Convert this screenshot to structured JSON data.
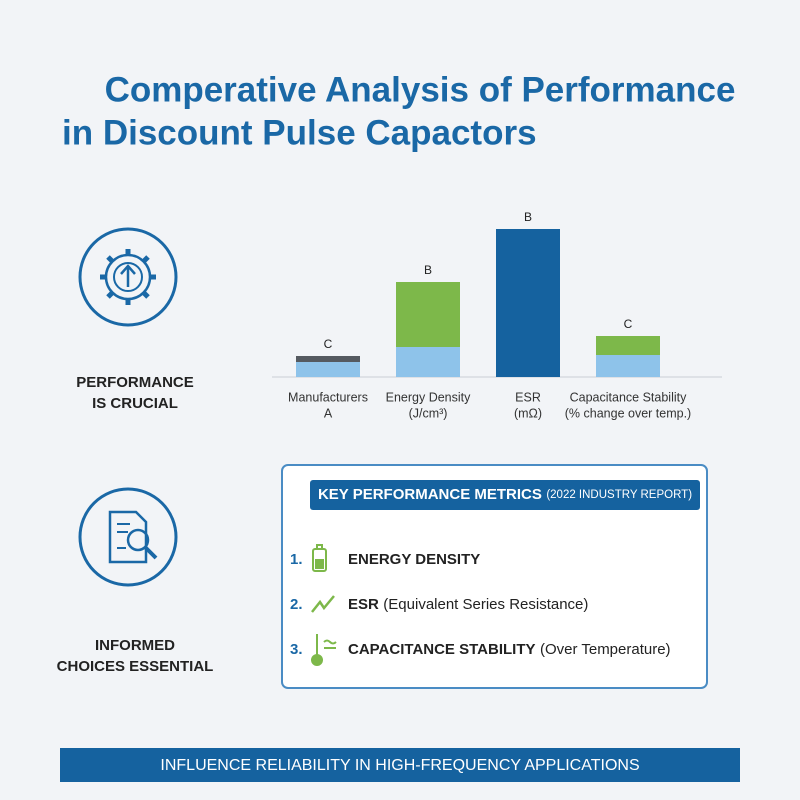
{
  "title": [
    "Comperative Analysis of Performance",
    "in Discount Pulse Capactors"
  ],
  "left_items": [
    {
      "lines": [
        "PERFORMANCE",
        "IS CRUCIAL"
      ]
    },
    {
      "lines": [
        "INFORMED",
        "CHOICES ESSENTIAL"
      ]
    }
  ],
  "chart_data": {
    "type": "bar",
    "stacked": true,
    "categories": [
      [
        "Manufacturers",
        "A"
      ],
      [
        "Energy Density",
        "(J/cm³)"
      ],
      [
        "ESR",
        "(mΩ)"
      ],
      [
        "Capacitance Stability",
        "(% change over temp.)"
      ]
    ],
    "series": [
      {
        "color": "#8ec3ea",
        "values": [
          15,
          30,
          0,
          22
        ]
      },
      {
        "color": "#7db84a",
        "values": [
          0,
          65,
          0,
          19
        ]
      },
      {
        "color": "#555a60",
        "values": [
          6,
          0,
          0,
          0
        ]
      },
      {
        "color": "#15629f",
        "values": [
          0,
          0,
          148,
          0
        ]
      }
    ],
    "bar_labels": [
      "C",
      "B",
      "B",
      "C"
    ],
    "ylim": [
      0,
      160
    ]
  },
  "metrics": {
    "heading": "KEY PERFORMANCE METRICS",
    "subheading": "(2022 INDUSTRY REPORT)",
    "items": [
      {
        "number": "1.",
        "label": "ENERGY DENSITY"
      },
      {
        "number": "2.",
        "label": "ESR",
        "note": "(Equivalent Series Resistance)"
      },
      {
        "number": "3.",
        "label": "CAPACITANCE STABILITY",
        "note": "(Over Temperature)"
      }
    ]
  },
  "banner": "INFLUENCE RELIABILITY IN HIGH-FREQUENCY APPLICATIONS"
}
